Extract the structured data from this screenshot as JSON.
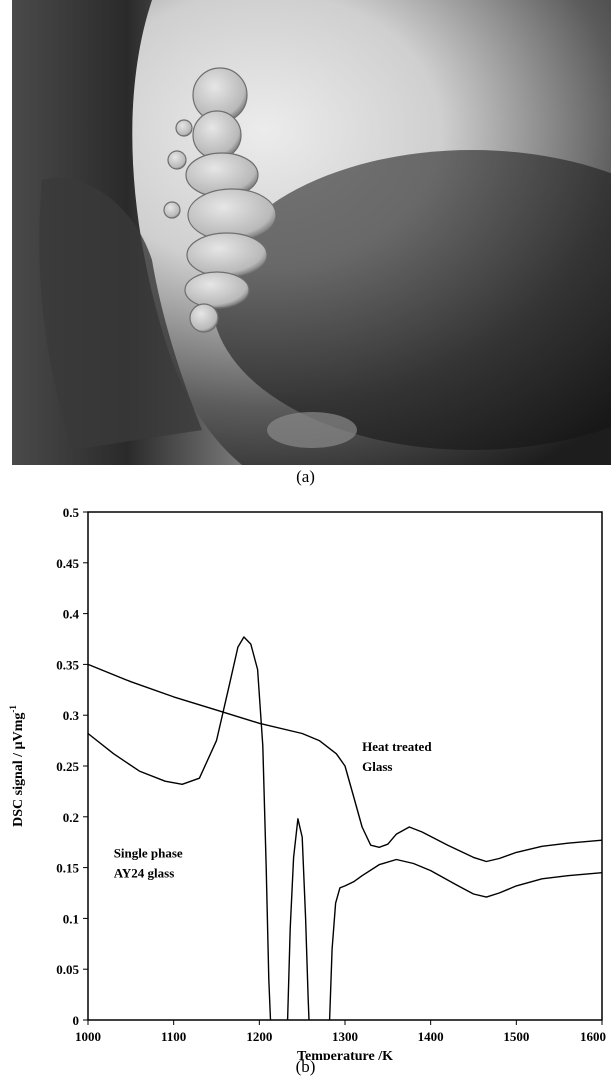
{
  "captions": {
    "a": "(a)",
    "b": "(b)"
  },
  "micrograph": {
    "description_icon": "microscope-image"
  },
  "chart_data": {
    "type": "line",
    "xlabel": "Temperature /K",
    "ylabel_main": "DSC signal / µVmg",
    "ylabel_sup": "-1",
    "xlim": [
      1000,
      1600
    ],
    "ylim": [
      0,
      0.5
    ],
    "x_ticks": [
      1000,
      1100,
      1200,
      1300,
      1400,
      1500,
      1600
    ],
    "x_tick_labels": [
      "1000",
      "1100",
      "1200",
      "1300",
      "1400",
      "1500",
      "1600"
    ],
    "y_ticks": [
      0,
      0.05,
      0.1,
      0.15,
      0.2,
      0.25,
      0.3,
      0.35,
      0.4,
      0.45,
      0.5
    ],
    "y_tick_labels": [
      "0",
      "0.05",
      "0.1",
      "0.15",
      "0.2",
      "0.25",
      "0.3",
      "0.35",
      "0.4",
      "0.45",
      "0.5"
    ],
    "annotations": [
      {
        "lines": [
          "Heat treated",
          "Glass"
        ],
        "x": 1320,
        "y": 0.265
      },
      {
        "lines": [
          "Single phase",
          "AY24 glass"
        ],
        "x": 1030,
        "y": 0.16
      }
    ],
    "series": [
      {
        "points": [
          [
            1000,
            0.35
          ],
          [
            1050,
            0.333
          ],
          [
            1100,
            0.318
          ],
          [
            1150,
            0.305
          ],
          [
            1200,
            0.292
          ],
          [
            1250,
            0.282
          ],
          [
            1270,
            0.275
          ],
          [
            1290,
            0.262
          ],
          [
            1300,
            0.25
          ],
          [
            1310,
            0.22
          ],
          [
            1320,
            0.19
          ],
          [
            1330,
            0.172
          ],
          [
            1340,
            0.17
          ],
          [
            1350,
            0.173
          ],
          [
            1360,
            0.183
          ],
          [
            1375,
            0.19
          ],
          [
            1390,
            0.185
          ],
          [
            1420,
            0.172
          ],
          [
            1450,
            0.16
          ],
          [
            1465,
            0.156
          ],
          [
            1480,
            0.159
          ],
          [
            1500,
            0.165
          ],
          [
            1530,
            0.171
          ],
          [
            1560,
            0.174
          ],
          [
            1600,
            0.177
          ]
        ]
      },
      {
        "points": [
          [
            1000,
            0.282
          ],
          [
            1030,
            0.262
          ],
          [
            1060,
            0.245
          ],
          [
            1090,
            0.235
          ],
          [
            1110,
            0.232
          ],
          [
            1130,
            0.238
          ],
          [
            1150,
            0.275
          ],
          [
            1165,
            0.33
          ],
          [
            1175,
            0.367
          ],
          [
            1182,
            0.377
          ],
          [
            1190,
            0.37
          ],
          [
            1198,
            0.345
          ],
          [
            1204,
            0.27
          ],
          [
            1208,
            0.15
          ],
          [
            1211,
            0.04
          ],
          [
            1213,
            0.0
          ]
        ]
      },
      {
        "points": [
          [
            1233,
            0.0
          ],
          [
            1236,
            0.09
          ],
          [
            1240,
            0.16
          ],
          [
            1245,
            0.198
          ],
          [
            1250,
            0.18
          ],
          [
            1254,
            0.1
          ],
          [
            1257,
            0.02
          ],
          [
            1258,
            0.0
          ]
        ]
      },
      {
        "points": [
          [
            1282,
            0.0
          ],
          [
            1285,
            0.07
          ],
          [
            1289,
            0.115
          ],
          [
            1294,
            0.13
          ],
          [
            1300,
            0.132
          ],
          [
            1310,
            0.136
          ],
          [
            1320,
            0.142
          ],
          [
            1340,
            0.153
          ],
          [
            1360,
            0.158
          ],
          [
            1380,
            0.154
          ],
          [
            1400,
            0.147
          ],
          [
            1430,
            0.133
          ],
          [
            1450,
            0.124
          ],
          [
            1465,
            0.121
          ],
          [
            1480,
            0.125
          ],
          [
            1500,
            0.132
          ],
          [
            1530,
            0.139
          ],
          [
            1560,
            0.142
          ],
          [
            1600,
            0.145
          ]
        ]
      }
    ]
  }
}
